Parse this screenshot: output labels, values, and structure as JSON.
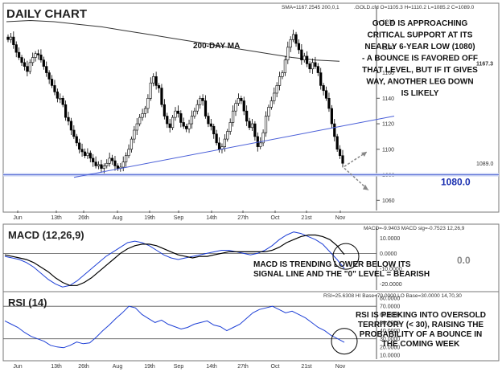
{
  "chart_data": [
    {
      "type": "candlestick",
      "title": "DAILY CHART",
      "symbol": ".GOLD.cfd",
      "legend_sma": "SMA=1167.2545  200,0,1",
      "legend_ohlc": ".GOLD.cfd O=1105.3 H=1110.2 L=1085.2 C=1089.0",
      "x_ticks": [
        "Jun",
        "13th",
        "26th",
        "Aug",
        "19th",
        "Sep",
        "14th",
        "27th",
        "Oct",
        "21st",
        "Nov"
      ],
      "y_ticks": [
        1060,
        1080,
        1100,
        1120,
        1140,
        1160,
        1180,
        1200
      ],
      "ylim": [
        1052,
        1212
      ],
      "price_labels": [
        {
          "text": "1167.3",
          "value": 1167.3
        },
        {
          "text": "1089.0",
          "value": 1089.0
        },
        {
          "text": "1080.0",
          "value": 1080.0
        }
      ],
      "ma_label": "200-DAY MA",
      "annotation": [
        "GOLD IS APPROACHING",
        "CRITICAL SUPPORT AT ITS",
        "NEARLY 6-YEAR LOW (1080)",
        "- A BOUNCE IS FAVORED OFF",
        "THAT LEVEL, BUT IF IT GIVES",
        "WAY, ANOTHER LEG DOWN",
        "IS LIKELY"
      ],
      "support_level": 1080,
      "close_path": [
        1186,
        1188,
        1182,
        1176,
        1172,
        1168,
        1165,
        1161,
        1168,
        1172,
        1175,
        1174,
        1170,
        1165,
        1160,
        1155,
        1150,
        1145,
        1140,
        1140,
        1135,
        1125,
        1122,
        1115,
        1110,
        1105,
        1100,
        1098,
        1095,
        1097,
        1093,
        1090,
        1087,
        1088,
        1085,
        1087,
        1089,
        1093,
        1091,
        1087,
        1085,
        1086,
        1090,
        1095,
        1100,
        1108,
        1115,
        1120,
        1125,
        1128,
        1132,
        1140,
        1152,
        1157,
        1150,
        1148,
        1135,
        1126,
        1120,
        1117,
        1125,
        1130,
        1128,
        1121,
        1118,
        1116,
        1120,
        1126,
        1130,
        1135,
        1140,
        1138,
        1126,
        1120,
        1118,
        1112,
        1105,
        1100,
        1102,
        1108,
        1114,
        1121,
        1130,
        1136,
        1140,
        1138,
        1130,
        1122,
        1117,
        1120,
        1110,
        1102,
        1105,
        1113,
        1126,
        1133,
        1138,
        1144,
        1150,
        1157,
        1160,
        1170,
        1180,
        1186,
        1190,
        1183,
        1178,
        1170,
        1173,
        1167,
        1163,
        1168,
        1165,
        1160,
        1150,
        1146,
        1140,
        1132,
        1120,
        1110,
        1100,
        1095,
        1089
      ],
      "ma_path": [
        1200,
        1201,
        1200,
        1198,
        1196,
        1193,
        1190,
        1187,
        1184,
        1181,
        1178,
        1175,
        1172,
        1170,
        1169
      ],
      "trendline": {
        "start": {
          "i": 24,
          "v": 1078
        },
        "end": {
          "i": 136,
          "v": 1126
        }
      }
    },
    {
      "type": "line",
      "title": "MACD (12,26,9)",
      "legend": "MACD=-9.9403 MACD sig=-0.7523  12,26,9",
      "y_ticks": [
        10,
        0,
        -10,
        -20
      ],
      "ylim": [
        -24,
        17
      ],
      "zero_label": "0.0",
      "annotation": [
        "MACD IS TRENDING LOWER BELOW ITS",
        "SIGNAL LINE AND THE \"0\" LEVEL = BEARISH"
      ],
      "series": [
        {
          "name": "MACD",
          "values": [
            -2,
            -3,
            -4,
            -6,
            -9,
            -13,
            -17,
            -20,
            -22,
            -21,
            -18,
            -14,
            -10,
            -6,
            -2,
            1,
            4,
            7,
            8,
            7,
            5,
            2,
            -1,
            -3,
            -4,
            -3,
            -2,
            -1,
            0,
            1,
            2,
            2,
            1,
            0,
            -1,
            0,
            2,
            5,
            9,
            12,
            14,
            13,
            11,
            9,
            6,
            1,
            -4,
            -9.9
          ]
        },
        {
          "name": "MACD sig",
          "values": [
            -1,
            -2,
            -3,
            -4,
            -6,
            -9,
            -12,
            -16,
            -19,
            -21,
            -21,
            -19,
            -16,
            -12,
            -8,
            -4,
            0,
            3,
            5,
            6,
            6,
            5,
            3,
            1,
            -1,
            -2,
            -3,
            -2,
            -2,
            -1,
            0,
            1,
            1,
            1,
            1,
            1,
            1,
            2,
            4,
            7,
            9,
            11,
            12,
            12,
            11,
            9,
            5,
            -0.75
          ]
        }
      ]
    },
    {
      "type": "line",
      "title": "RSI (14)",
      "legend": "RSI=25.6308 HI Base=70.0000 LO Base=30.0000  14,70,30",
      "y_ticks": [
        80,
        70,
        60,
        50,
        40,
        30,
        20,
        10
      ],
      "ylim": [
        5,
        85
      ],
      "hi_base": 70,
      "lo_base": 30,
      "annotation": [
        "RSI IS PEEKING INTO OVERSOLD",
        "TERRITORY (< 30), RAISING THE",
        "PROBABILITY OF A BOUNCE IN",
        "THE COMING WEEK"
      ],
      "series": [
        {
          "name": "RSI",
          "values": [
            52,
            48,
            44,
            38,
            33,
            30,
            27,
            22,
            20,
            19,
            22,
            26,
            24,
            25,
            32,
            40,
            47,
            55,
            62,
            70,
            68,
            60,
            55,
            50,
            53,
            48,
            45,
            42,
            44,
            48,
            50,
            52,
            47,
            45,
            40,
            44,
            48,
            55,
            62,
            66,
            68,
            70,
            66,
            62,
            64,
            60,
            56,
            50,
            44,
            40,
            34,
            30,
            25.6
          ]
        }
      ]
    }
  ]
}
